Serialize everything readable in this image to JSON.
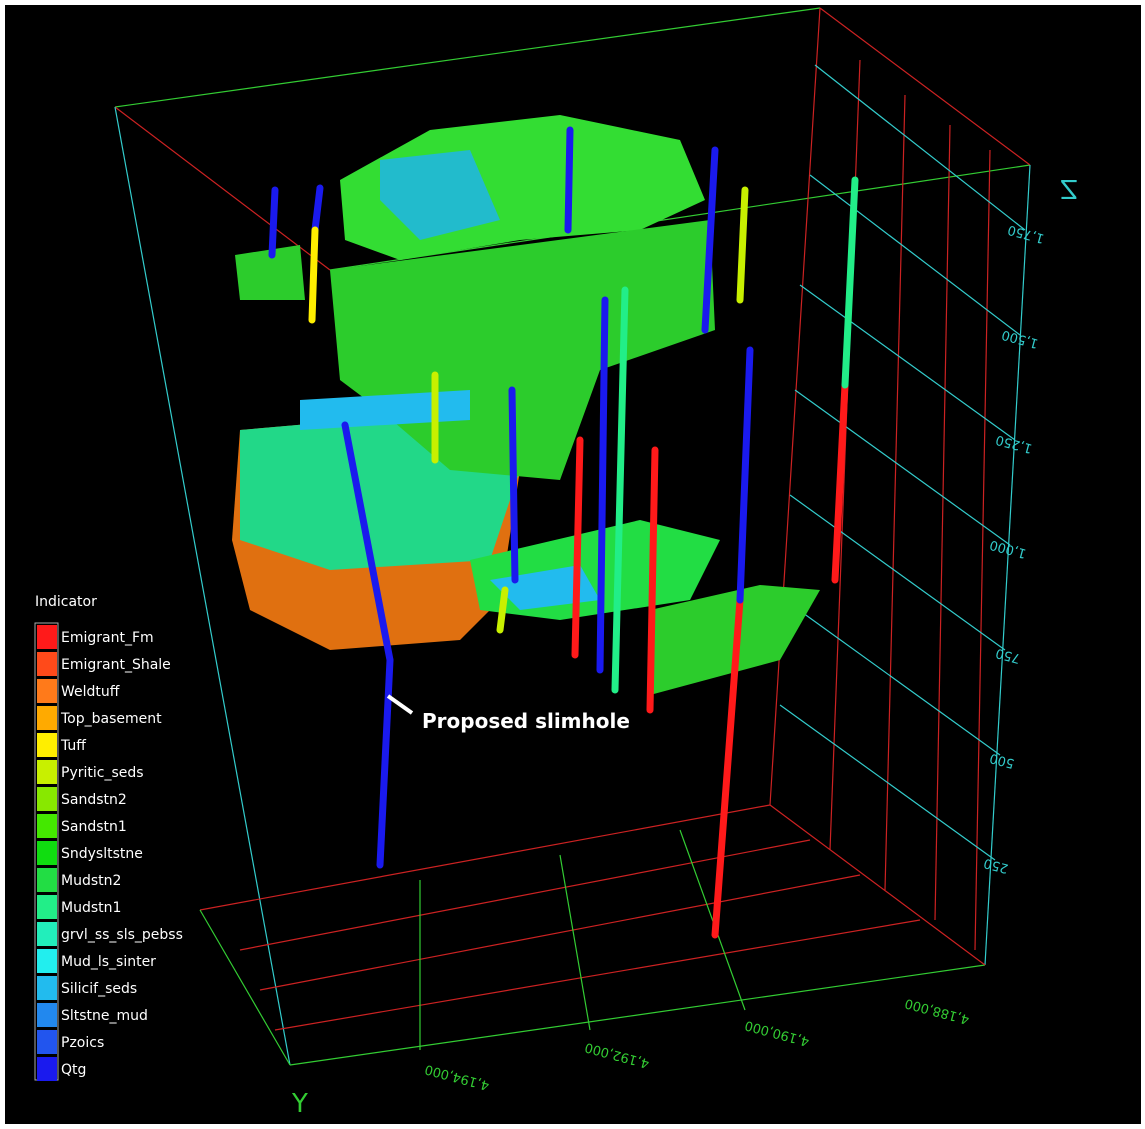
{
  "legend": {
    "title": "Indicator",
    "items": [
      {
        "label": "Emigrant_Fm",
        "color": "#ff1a1a"
      },
      {
        "label": "Emigrant_Shale",
        "color": "#ff4a1a"
      },
      {
        "label": "Weldtuff",
        "color": "#ff7a1a"
      },
      {
        "label": "Top_basement",
        "color": "#ffaa00"
      },
      {
        "label": "Tuff",
        "color": "#ffee00"
      },
      {
        "label": "Pyritic_seds",
        "color": "#c8f000"
      },
      {
        "label": "Sandstn2",
        "color": "#88e800"
      },
      {
        "label": "Sandstn1",
        "color": "#44e800"
      },
      {
        "label": "Sndysltstne",
        "color": "#10dd10"
      },
      {
        "label": "Mudstn2",
        "color": "#22dd44"
      },
      {
        "label": "Mudstn1",
        "color": "#22ee88"
      },
      {
        "label": "grvl_ss_sls_pebss",
        "color": "#22eebb"
      },
      {
        "label": "Mud_ls_sinter",
        "color": "#22eeee"
      },
      {
        "label": "Silicif_seds",
        "color": "#22bbee"
      },
      {
        "label": "Sltstne_mud",
        "color": "#2288ee"
      },
      {
        "label": "Pzoics",
        "color": "#2255ee"
      },
      {
        "label": "Qtg",
        "color": "#1a1aee"
      }
    ]
  },
  "annotation": "Proposed slimhole",
  "axes": {
    "z": {
      "label": "Z",
      "ticks": [
        "1,750",
        "1,500",
        "1,250",
        "1,000",
        "750",
        "500",
        "250"
      ]
    },
    "y": {
      "label": "Y",
      "ticks": [
        "4,194,000",
        "4,192,000",
        "4,190,000",
        "4,188,000"
      ]
    }
  }
}
